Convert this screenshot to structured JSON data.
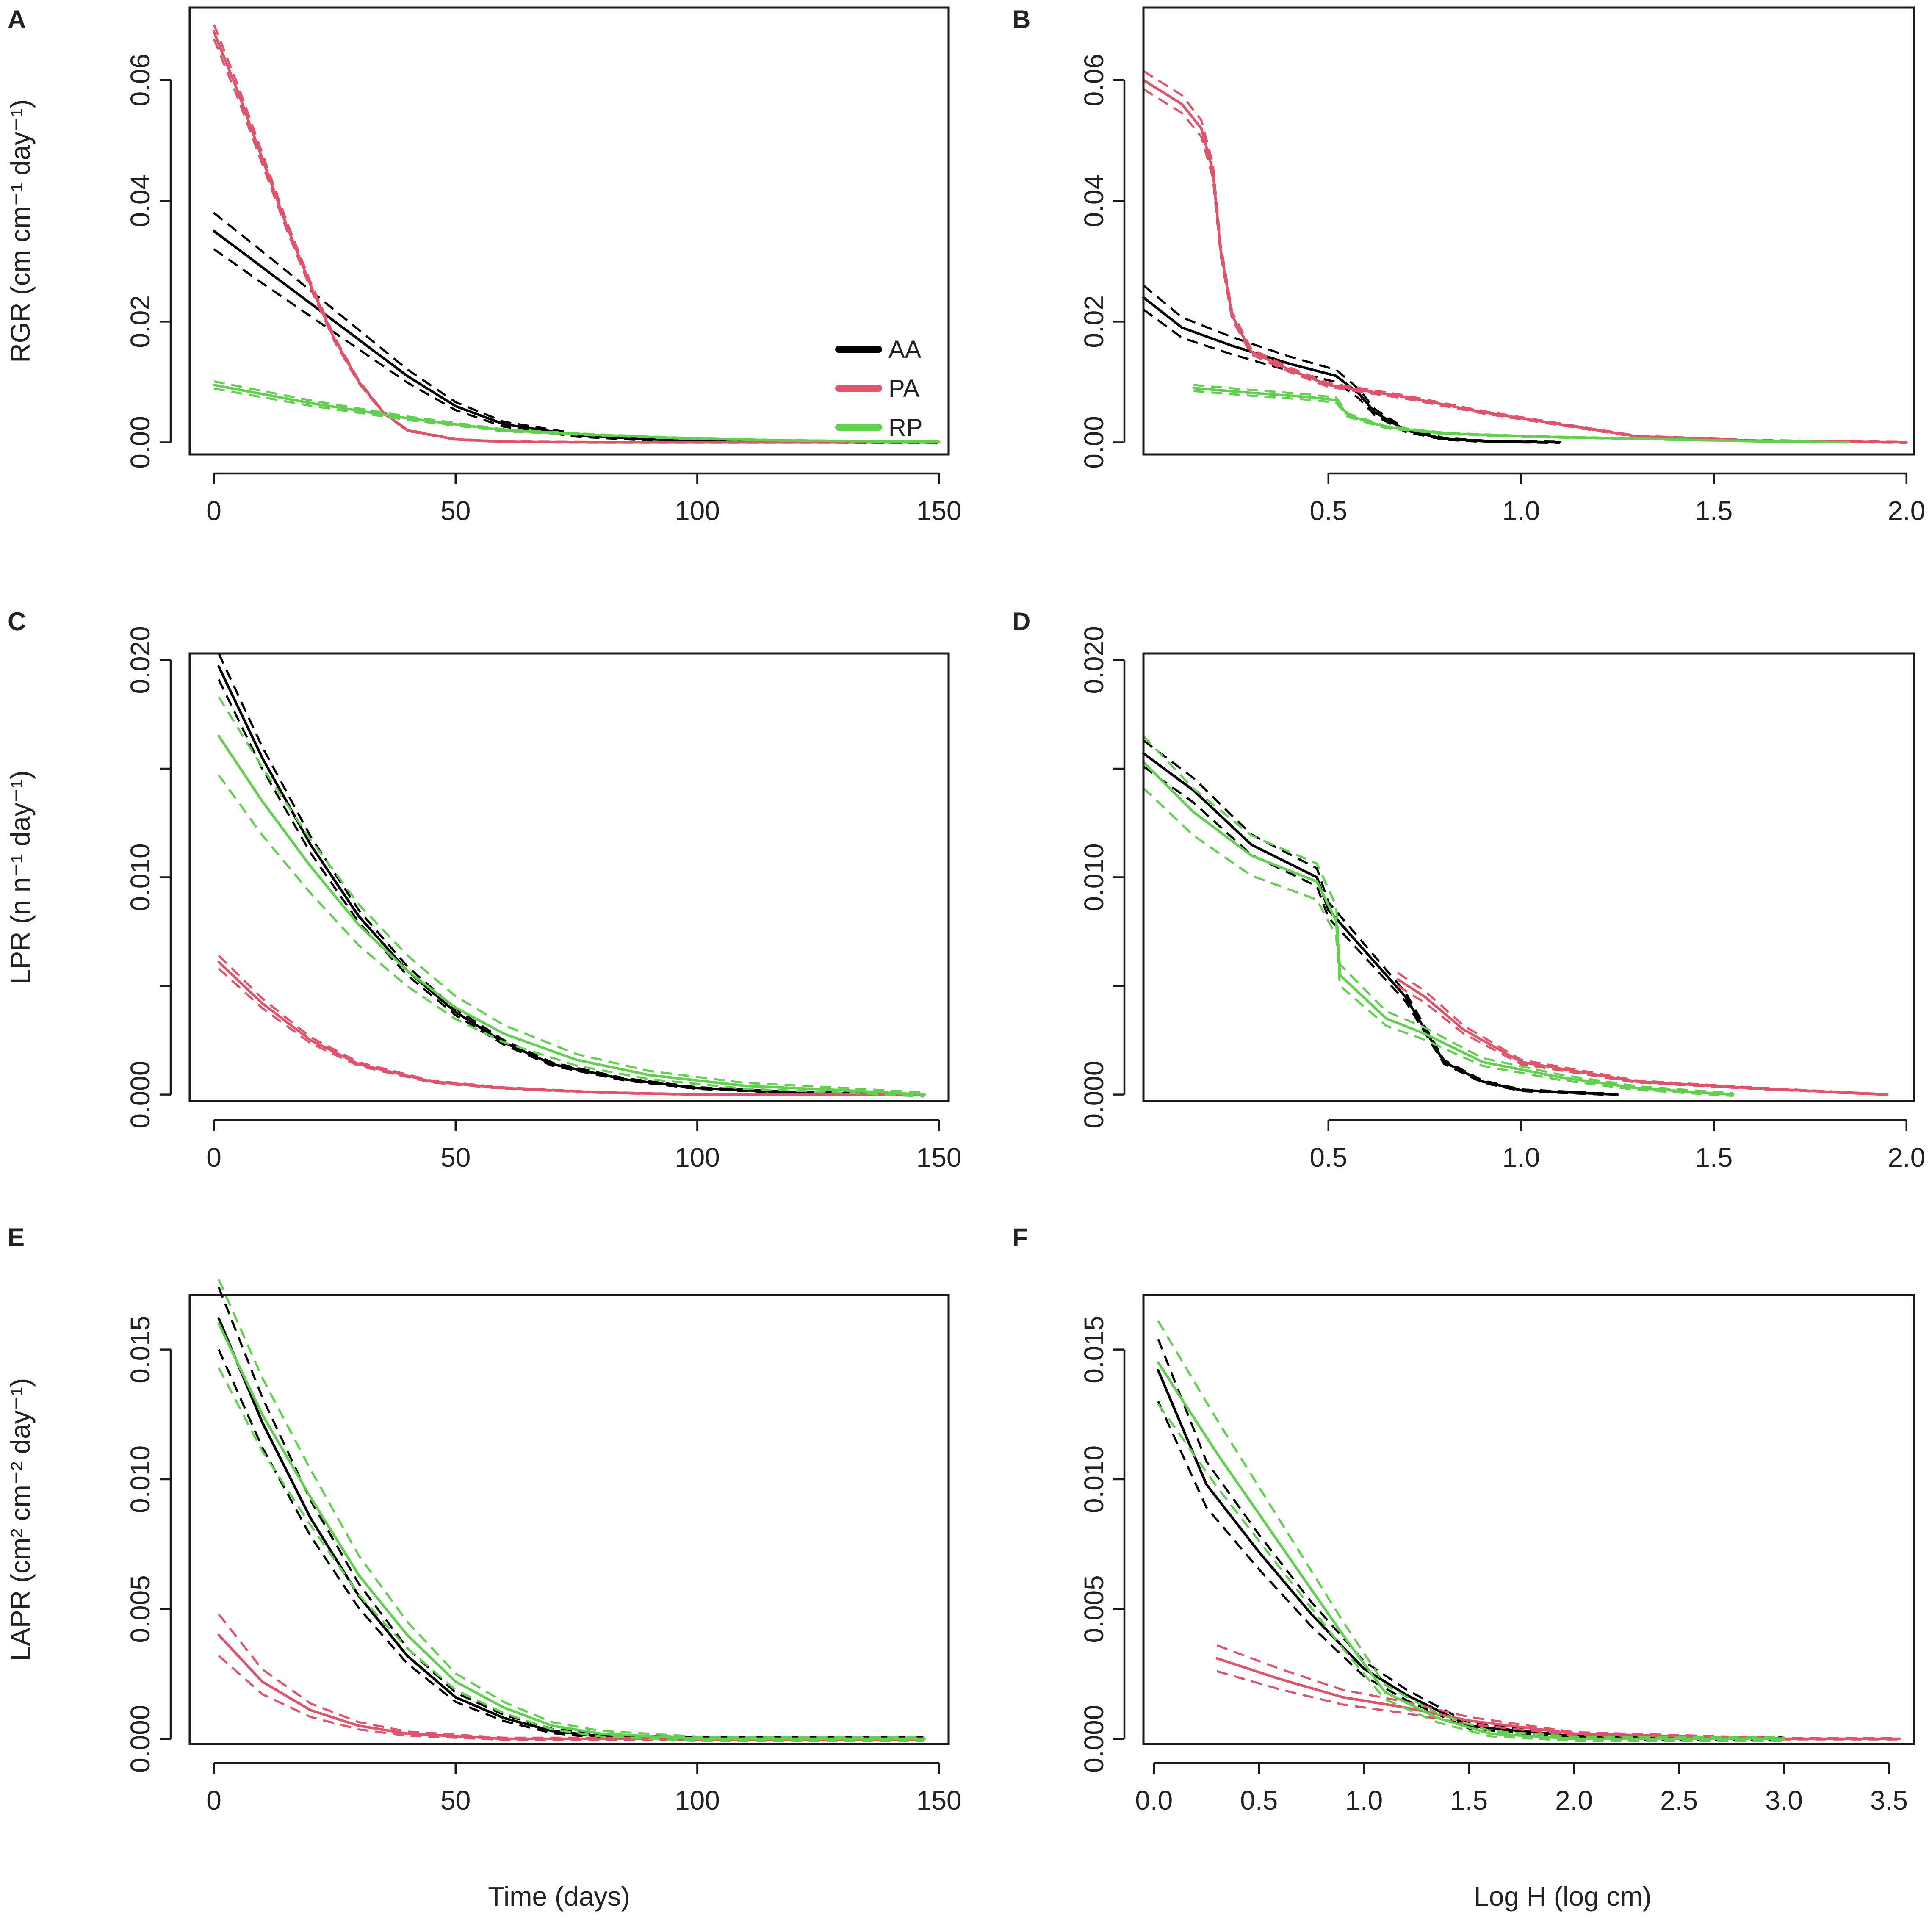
{
  "figure": {
    "x_label_time": "Time (days)",
    "x_label_logh": "Log H (log cm)"
  },
  "colors": {
    "AA": "#000000",
    "PA": "#df536b",
    "RP": "#61d04f"
  },
  "legend": [
    {
      "label": "AA",
      "color": "#000000"
    },
    {
      "label": "PA",
      "color": "#df536b"
    },
    {
      "label": "RP",
      "color": "#61d04f"
    }
  ],
  "chart_data": [
    {
      "panel": "A",
      "type": "line",
      "ylabel": "RGR (cm cm⁻¹ day⁻¹)",
      "xlim": [
        -5,
        152
      ],
      "ylim": [
        -0.002,
        0.072
      ],
      "xticks": [
        0,
        50,
        100,
        150
      ],
      "xtick_labels": [
        "0",
        "50",
        "100",
        "150"
      ],
      "yticks": [
        0,
        0.02,
        0.04,
        0.06
      ],
      "ytick_labels": [
        "0.00",
        "0.02",
        "0.04",
        "0.06"
      ],
      "legend": true,
      "series": [
        {
          "name": "AA",
          "ci": 0.003,
          "x": [
            0,
            10,
            20,
            30,
            40,
            50,
            60,
            75,
            90,
            110,
            130,
            150
          ],
          "y": [
            0.035,
            0.029,
            0.023,
            0.017,
            0.011,
            0.006,
            0.003,
            0.0012,
            0.0005,
            0.0002,
            0.0001,
            0.0
          ]
        },
        {
          "name": "PA",
          "ci": 0.0012,
          "x": [
            0,
            5,
            10,
            15,
            20,
            25,
            30,
            35,
            40,
            50,
            60,
            80,
            100,
            150
          ],
          "y": [
            0.068,
            0.058,
            0.047,
            0.036,
            0.026,
            0.017,
            0.01,
            0.005,
            0.002,
            0.0005,
            0.0001,
            0.0,
            0.0,
            0.0
          ]
        },
        {
          "name": "RP",
          "ci": 0.0006,
          "x": [
            0,
            20,
            40,
            60,
            80,
            100,
            120,
            150
          ],
          "y": [
            0.0095,
            0.0065,
            0.004,
            0.002,
            0.0012,
            0.0006,
            0.0003,
            0.0001
          ]
        }
      ]
    },
    {
      "panel": "B",
      "type": "line",
      "ylabel": "",
      "xlim": [
        0.02,
        2.02
      ],
      "ylim": [
        -0.002,
        0.072
      ],
      "xticks": [
        0.5,
        1.0,
        1.5,
        2.0
      ],
      "xtick_labels": [
        "0.5",
        "1.0",
        "1.5",
        "2.0"
      ],
      "yticks": [
        0,
        0.02,
        0.04,
        0.06
      ],
      "ytick_labels": [
        "0.00",
        "0.02",
        "0.04",
        "0.06"
      ],
      "legend": false,
      "series": [
        {
          "name": "AA",
          "ci": 0.002,
          "x": [
            0.02,
            0.12,
            0.25,
            0.4,
            0.52,
            0.58,
            0.62,
            0.7,
            0.8,
            0.9,
            1.1
          ],
          "y": [
            0.024,
            0.019,
            0.016,
            0.013,
            0.011,
            0.008,
            0.005,
            0.002,
            0.0006,
            0.0002,
            0.0
          ]
        },
        {
          "name": "PA",
          "ci": 0.0015,
          "x": [
            0.02,
            0.12,
            0.17,
            0.2,
            0.22,
            0.25,
            0.3,
            0.4,
            0.5,
            0.7,
            0.9,
            1.1,
            1.3,
            1.6,
            2.0
          ],
          "y": [
            0.06,
            0.056,
            0.052,
            0.045,
            0.032,
            0.021,
            0.015,
            0.012,
            0.0095,
            0.0075,
            0.005,
            0.003,
            0.001,
            0.0003,
            0.0
          ]
        },
        {
          "name": "RP",
          "ci": 0.0005,
          "x": [
            0.15,
            0.3,
            0.45,
            0.52,
            0.55,
            0.65,
            0.8,
            1.0,
            1.3,
            1.6,
            1.85
          ],
          "y": [
            0.009,
            0.0082,
            0.0075,
            0.007,
            0.0045,
            0.0025,
            0.0015,
            0.001,
            0.0006,
            0.0002,
            0.0
          ]
        }
      ]
    },
    {
      "panel": "C",
      "type": "line",
      "ylabel": "LPR (n n⁻¹ day⁻¹)",
      "xlim": [
        -5,
        152
      ],
      "ylim": [
        -0.0003,
        0.0203
      ],
      "xticks": [
        0,
        50,
        100,
        150
      ],
      "xtick_labels": [
        "0",
        "50",
        "100",
        "150"
      ],
      "yticks": [
        0,
        0.005,
        0.01,
        0.015,
        0.02
      ],
      "ytick_labels": [
        "0.000",
        "",
        "0.010",
        "",
        "0.020"
      ],
      "legend": false,
      "series": [
        {
          "name": "AA",
          "ci": 0.0006,
          "x": [
            1,
            10,
            20,
            30,
            40,
            50,
            60,
            70,
            85,
            100,
            120,
            147
          ],
          "y": [
            0.0197,
            0.0155,
            0.0115,
            0.0082,
            0.0057,
            0.0038,
            0.0024,
            0.0014,
            0.0007,
            0.0003,
            0.0001,
            0.0
          ]
        },
        {
          "name": "PA",
          "ci": 0.0003,
          "x": [
            1,
            10,
            20,
            30,
            45,
            60,
            80,
            100,
            147
          ],
          "y": [
            0.0061,
            0.0042,
            0.0025,
            0.0014,
            0.0006,
            0.0003,
            0.0001,
            0.0,
            0.0
          ]
        },
        {
          "name": "RP",
          "ci": 0.0018,
          "x": [
            1,
            10,
            20,
            30,
            40,
            50,
            60,
            75,
            90,
            110,
            130,
            147
          ],
          "y": [
            0.0165,
            0.0135,
            0.0105,
            0.0078,
            0.0057,
            0.004,
            0.0028,
            0.0016,
            0.0009,
            0.0004,
            0.0002,
            0.0
          ]
        }
      ]
    },
    {
      "panel": "D",
      "type": "line",
      "ylabel": "",
      "xlim": [
        0.02,
        2.02
      ],
      "ylim": [
        -0.0003,
        0.0203
      ],
      "xticks": [
        0.5,
        1.0,
        1.5,
        2.0
      ],
      "xtick_labels": [
        "0.5",
        "1.0",
        "1.5",
        "2.0"
      ],
      "yticks": [
        0,
        0.005,
        0.01,
        0.015,
        0.02
      ],
      "ytick_labels": [
        "0.000",
        "",
        "0.010",
        "",
        "0.020"
      ],
      "legend": false,
      "series": [
        {
          "name": "AA",
          "ci": 0.0006,
          "x": [
            0.02,
            0.15,
            0.3,
            0.47,
            0.5,
            0.6,
            0.7,
            0.8,
            0.9,
            1.0,
            1.25
          ],
          "y": [
            0.0157,
            0.014,
            0.0115,
            0.01,
            0.0085,
            0.0065,
            0.0045,
            0.0015,
            0.0006,
            0.0002,
            0.0
          ]
        },
        {
          "name": "PA",
          "ci": 0.0003,
          "x": [
            0.68,
            0.75,
            0.85,
            1.0,
            1.3,
            1.6,
            1.95
          ],
          "y": [
            0.0053,
            0.0045,
            0.003,
            0.0015,
            0.0006,
            0.0003,
            0.0
          ]
        },
        {
          "name": "RP",
          "ci": 0.0012,
          "x": [
            0.02,
            0.15,
            0.3,
            0.47,
            0.52,
            0.53,
            0.65,
            0.75,
            0.9,
            1.1,
            1.3,
            1.55
          ],
          "y": [
            0.0153,
            0.013,
            0.011,
            0.0098,
            0.008,
            0.0055,
            0.0035,
            0.0028,
            0.0015,
            0.0008,
            0.0003,
            0.0
          ]
        }
      ]
    },
    {
      "panel": "E",
      "type": "line",
      "ylabel": "LAPR (cm² cm⁻² day⁻¹)",
      "xlim": [
        -5,
        152
      ],
      "ylim": [
        -0.0002,
        0.0171
      ],
      "xticks": [
        0,
        50,
        100,
        150
      ],
      "xtick_labels": [
        "0",
        "50",
        "100",
        "150"
      ],
      "yticks": [
        0,
        0.005,
        0.01,
        0.015
      ],
      "ytick_labels": [
        "0.000",
        "0.005",
        "0.010",
        "0.015"
      ],
      "legend": false,
      "series": [
        {
          "name": "AA",
          "ci": 0.0012,
          "x": [
            1,
            10,
            20,
            30,
            40,
            50,
            60,
            70,
            80,
            100,
            147
          ],
          "y": [
            0.0162,
            0.0122,
            0.0085,
            0.0055,
            0.0032,
            0.0016,
            0.0008,
            0.0003,
            0.0001,
            0.0,
            0.0
          ]
        },
        {
          "name": "PA",
          "ci": 0.0008,
          "x": [
            1,
            10,
            20,
            30,
            40,
            50,
            60,
            80,
            147
          ],
          "y": [
            0.004,
            0.0022,
            0.0011,
            0.0005,
            0.0002,
            0.0001,
            0.0,
            0.0,
            0.0
          ]
        },
        {
          "name": "RP",
          "ci": 0.0017,
          "x": [
            1,
            10,
            20,
            30,
            40,
            50,
            60,
            70,
            80,
            100,
            147
          ],
          "y": [
            0.016,
            0.0125,
            0.0093,
            0.0063,
            0.004,
            0.0022,
            0.0012,
            0.0005,
            0.0002,
            0.0,
            0.0
          ]
        }
      ]
    },
    {
      "panel": "F",
      "type": "line",
      "ylabel": "",
      "xlim": [
        -0.05,
        3.62
      ],
      "ylim": [
        -0.0002,
        0.0171
      ],
      "xticks": [
        0,
        0.5,
        1.0,
        1.5,
        2.0,
        2.5,
        3.0,
        3.5
      ],
      "xtick_labels": [
        "0.0",
        "0.5",
        "1.0",
        "1.5",
        "2.0",
        "2.5",
        "3.0",
        "3.5"
      ],
      "yticks": [
        0,
        0.005,
        0.01,
        0.015
      ],
      "ytick_labels": [
        "0.000",
        "0.005",
        "0.010",
        "0.015"
      ],
      "legend": false,
      "series": [
        {
          "name": "AA",
          "ci": 0.0012,
          "x": [
            0.02,
            0.25,
            0.5,
            0.75,
            1.0,
            1.2,
            1.5,
            2.0,
            2.5,
            3.0
          ],
          "y": [
            0.0142,
            0.0098,
            0.0072,
            0.0048,
            0.0027,
            0.0017,
            0.0005,
            0.0001,
            0.0,
            0.0
          ]
        },
        {
          "name": "PA",
          "ci": 0.0005,
          "x": [
            0.3,
            0.6,
            0.9,
            1.2,
            1.5,
            2.0,
            2.5,
            3.0,
            3.55
          ],
          "y": [
            0.0031,
            0.0023,
            0.0016,
            0.0012,
            0.0007,
            0.0002,
            0.0001,
            0.0,
            0.0
          ]
        },
        {
          "name": "RP",
          "ci": 0.0016,
          "x": [
            0.02,
            0.3,
            0.6,
            0.9,
            1.1,
            1.35,
            1.6,
            2.0,
            2.5,
            3.0
          ],
          "y": [
            0.0145,
            0.011,
            0.0075,
            0.004,
            0.0018,
            0.0008,
            0.0002,
            0.0,
            0.0,
            0.0
          ]
        }
      ]
    }
  ]
}
